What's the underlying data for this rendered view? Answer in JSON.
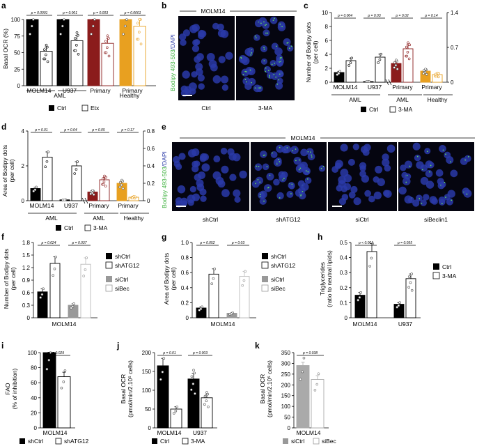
{
  "panels": [
    {
      "id": "a",
      "letter": "a",
      "type": "bar",
      "ylabel": [
        "Basal OCR (%)"
      ],
      "ylim": [
        0,
        100
      ],
      "yticks": [
        0,
        25,
        50,
        75,
        100
      ],
      "groups": [
        {
          "name": "MOLM14",
          "cat": "AML",
          "color": "#000000",
          "ctrl": 100,
          "trt": 52,
          "p": "p = 0.0001"
        },
        {
          "name": "U937",
          "cat": "AML",
          "color": "#000000",
          "ctrl": 100,
          "trt": 68,
          "p": "p = 0.001"
        },
        {
          "name": "Primary",
          "cat": "AML",
          "color": "#8b1c1c",
          "ctrl": 100,
          "trt": 64,
          "p": "p = 0.003"
        },
        {
          "name": "Primary",
          "cat": "Healthy",
          "color": "#e8a020",
          "ctrl": 100,
          "trt": 90,
          "p": "p = 0.0001"
        }
      ],
      "categories": [
        "AML",
        "Healthy"
      ],
      "legend": [
        "Ctrl",
        "Etx"
      ]
    },
    {
      "id": "c",
      "letter": "c",
      "type": "bar",
      "ylabel": [
        "Number of Bodipy dots",
        "(per cell)"
      ],
      "ylim": [
        0,
        10
      ],
      "yticks": [
        0,
        2,
        4,
        6,
        8,
        10
      ],
      "ylim2": [
        0,
        1.4
      ],
      "yticks2": [
        "0",
        "0.7",
        "1.4"
      ],
      "groups": [
        {
          "name": "MOLM14",
          "cat": "AML",
          "color": "#000000",
          "ctrl": 1.4,
          "trt": 3.1,
          "p": "p = 0.004"
        },
        {
          "name": "U937",
          "cat": "AML",
          "color": "#000000",
          "ctrl": 0.1,
          "trt": 3.6,
          "p": "p = 0.03"
        },
        {
          "name": "Primary",
          "cat": "AML",
          "color": "#8b1c1c",
          "ctrl": 2.7,
          "trt": 4.8,
          "p": "p = 0.02"
        },
        {
          "name": "Primary",
          "cat": "Healthy",
          "color": "#e8a020",
          "ctrl": 1.6,
          "trt": 1.1,
          "p": "p = 0.14"
        }
      ],
      "categories": [
        "AML",
        "AML",
        "Healthy"
      ],
      "legend": [
        "Ctrl",
        "3-MA"
      ]
    },
    {
      "id": "d",
      "letter": "d",
      "type": "bar",
      "ylabel": [
        "Area of Bodipy dots",
        "(per cell)"
      ],
      "ylim": [
        0,
        4
      ],
      "yticks": [
        0,
        2,
        4
      ],
      "ylim2": [
        0,
        0.8
      ],
      "yticks2": [
        "0",
        "0.2",
        "0.4",
        "0.6",
        "0.8"
      ],
      "groups": [
        {
          "name": "MOLM14",
          "cat": "AML",
          "color": "#000000",
          "ctrl": 0.7,
          "trt": 2.5,
          "p": "p = 0.01"
        },
        {
          "name": "U937",
          "cat": "AML",
          "color": "#000000",
          "ctrl": 0.05,
          "trt": 2.0,
          "p": "p = 0.04"
        },
        {
          "name": "Primary",
          "cat": "AML",
          "color": "#8b1c1c",
          "ctrl": 0.5,
          "trt": 1.2,
          "p": "p = 0.05"
        },
        {
          "name": "Primary",
          "cat": "Healthy",
          "color": "#e8a020",
          "ctrl": 1.0,
          "trt": 0.2,
          "p": "p = 0.17"
        }
      ],
      "categories": [
        "AML",
        "AML",
        "Healthy"
      ],
      "legend": [
        "Ctrl",
        "3-MA"
      ]
    },
    {
      "id": "f",
      "letter": "f",
      "type": "bar",
      "ylabel": [
        "Number of Bodipy dots",
        "(per cell)"
      ],
      "ylim": [
        0,
        1.8
      ],
      "yticks": [
        "0",
        "0.3",
        "0.6",
        "0.9",
        "1.2",
        "1.5",
        "1.8"
      ],
      "groups": [
        {
          "name": "MOLM14",
          "bars": [
            0.62,
            1.3,
            0.3,
            1.28
          ],
          "p": [
            "p = 0.024",
            "p = 0.037"
          ]
        }
      ],
      "legend": [
        "shCtrl",
        "shATG12",
        "siCtrl",
        "siBec"
      ]
    },
    {
      "id": "g",
      "letter": "g",
      "type": "bar",
      "ylabel": [
        "Area of Bodipy dots",
        "(per cell)"
      ],
      "ylim": [
        0,
        1.0
      ],
      "yticks": [
        "0",
        "0.2",
        "0.4",
        "0.6",
        "0.8",
        "1.0"
      ],
      "groups": [
        {
          "name": "MOLM14",
          "bars": [
            0.13,
            0.58,
            0.06,
            0.55
          ],
          "p": [
            "p = 0.052",
            "p = 0.03"
          ]
        }
      ],
      "legend": [
        "shCtrl",
        "shATG12",
        "siCtrl",
        "siBec"
      ]
    },
    {
      "id": "h",
      "letter": "h",
      "type": "bar",
      "ylabel": [
        "Triglycerides",
        "(ratio to neutral lipids)"
      ],
      "ylim": [
        0,
        0.5
      ],
      "yticks": [
        "0",
        "0.1",
        "0.2",
        "0.3",
        "0.4",
        "0.5"
      ],
      "groups": [
        {
          "name": "MOLM14",
          "ctrl": 0.15,
          "trt": 0.44,
          "p": "p < 0.001"
        },
        {
          "name": "U937",
          "ctrl": 0.09,
          "trt": 0.26,
          "p": "p = 0.055"
        }
      ],
      "legend": [
        "Ctrl",
        "3-MA"
      ]
    },
    {
      "id": "i",
      "letter": "i",
      "type": "bar",
      "ylabel": [
        "FAO",
        "(% of inhibition)"
      ],
      "ylim": [
        0,
        100
      ],
      "yticks": [
        0,
        20,
        40,
        60,
        80,
        100
      ],
      "groups": [
        {
          "name": "MOLM14",
          "ctrl": 100,
          "trt": 68,
          "p": "p = 0.029"
        }
      ],
      "legend": [
        "shCtrl",
        "shATG12"
      ]
    },
    {
      "id": "j",
      "letter": "j",
      "type": "bar",
      "ylabel": [
        "Basal OCR",
        "(pmol/min/2.10⁵ cells)"
      ],
      "ylim": [
        0,
        200
      ],
      "yticks": [
        0,
        50,
        100,
        150,
        200
      ],
      "groups": [
        {
          "name": "MOLM14",
          "ctrl": 165,
          "trt": 50,
          "p": "p = 0.01"
        },
        {
          "name": "U937",
          "ctrl": 130,
          "trt": 80,
          "p": "p = 0.003"
        }
      ],
      "legend": [
        "Ctrl",
        "3-MA"
      ]
    },
    {
      "id": "k",
      "letter": "k",
      "type": "bar",
      "ylabel": [
        "Basal OCR",
        "(pmol/min/2.10⁵ cells)"
      ],
      "ylim": [
        0,
        350
      ],
      "yticks": [
        0,
        50,
        100,
        150,
        200,
        250,
        300,
        350
      ],
      "groups": [
        {
          "name": "MOLM14",
          "ctrl": 290,
          "trt": 225,
          "p": "p = 0.038"
        }
      ],
      "legend": [
        "siCtrl",
        "siBec"
      ]
    }
  ],
  "micrographs": {
    "b": {
      "letter": "b",
      "title": "MOLM14",
      "stain": "Bodipy 493-503",
      "dapi": "/DAPI",
      "labels": [
        "Ctrl",
        "3-MA"
      ]
    },
    "e": {
      "letter": "e",
      "title": "MOLM14",
      "stain": "Bodipy 493-503",
      "dapi": "/DAPI",
      "labels": [
        "shCtrl",
        "shATG12",
        "siCtrl",
        "siBeclin1"
      ]
    }
  },
  "colors": {
    "aml_primary": "#8b1c1c",
    "healthy": "#e8a020",
    "gray": "#999999",
    "lightgray": "#cccccc",
    "dapi": "#2a3aa8",
    "bodipy": "#5fd35f"
  }
}
